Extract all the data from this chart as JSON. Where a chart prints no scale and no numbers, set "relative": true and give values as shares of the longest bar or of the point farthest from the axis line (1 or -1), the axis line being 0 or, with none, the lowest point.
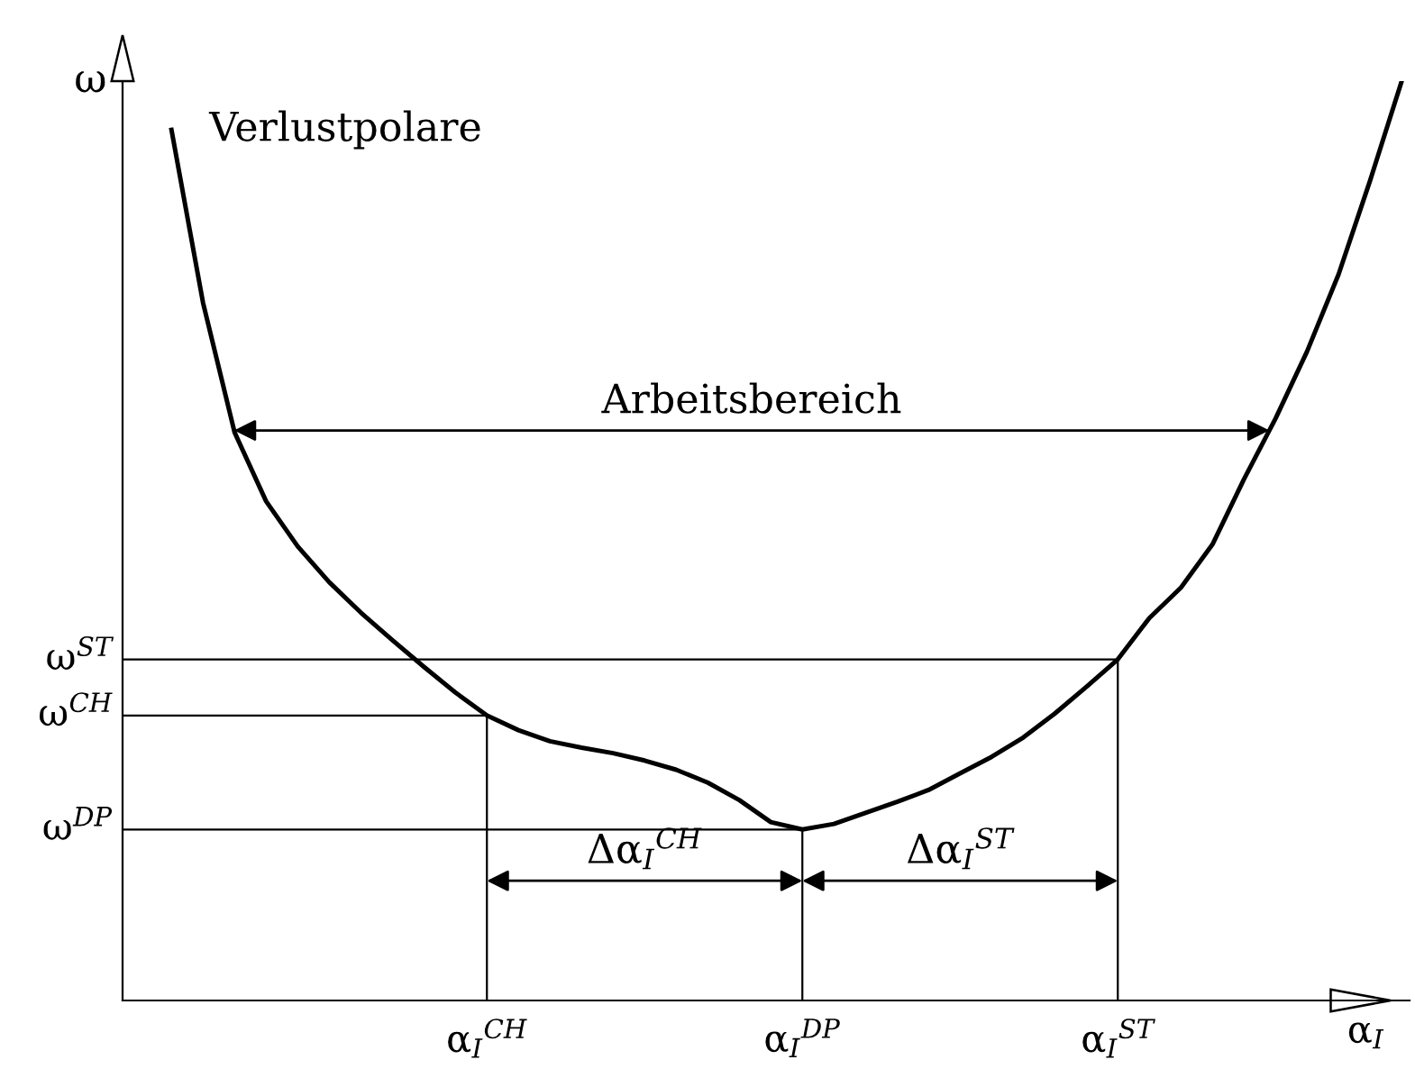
{
  "chart_data": {
    "type": "line",
    "relative": true,
    "xlabel": "α$_{I}$",
    "ylabel": "ω",
    "categories": [
      null,
      null,
      null,
      null,
      null,
      null,
      null,
      null,
      null,
      null,
      "α$_{I}$$^{CH}$",
      null,
      null,
      null,
      null,
      null,
      null,
      null,
      null,
      null,
      "α$_{I}$$^{DP}$",
      null,
      null,
      null,
      null,
      null,
      null,
      null,
      null,
      null,
      "α$_{I}$$^{ST}$",
      null,
      null,
      null,
      null,
      null,
      null,
      null,
      null,
      null
    ],
    "series": [
      {
        "color": "#000000",
        "values": [
          0.947,
          0.759,
          0.618,
          0.543,
          0.494,
          0.455,
          0.422,
          0.392,
          0.363,
          0.335,
          0.31,
          0.294,
          0.282,
          0.275,
          0.269,
          0.261,
          0.251,
          0.237,
          0.218,
          0.194,
          0.186,
          0.192,
          0.204,
          0.216,
          0.229,
          0.247,
          0.265,
          0.286,
          0.312,
          0.341,
          0.371,
          0.416,
          0.449,
          0.496,
          0.567,
          0.633,
          0.706,
          0.79,
          0.892,
          1.0
        ]
      }
    ],
    "ref_lines": [
      {
        "axis": "x",
        "value": "α$_{I}$$^{CH}$"
      },
      {
        "axis": "x",
        "value": "α$_{I}$$^{DP}$"
      },
      {
        "axis": "x",
        "value": "α$_{I}$$^{ST}$"
      },
      {
        "axis": "y",
        "value": 0.31,
        "label": "ω$^{CH}$"
      },
      {
        "axis": "y",
        "value": 0.186,
        "label": "ω$^{DP}$"
      },
      {
        "axis": "y",
        "value": 0.371,
        "label": "ω$^{ST}$"
      }
    ],
    "annotations": [
      "Verlustpolare",
      "Arbeitsbereich",
      "Δα$_{I}$$^{CH}$",
      "Δα$_{I}$$^{ST}$"
    ],
    "grid": false,
    "legend": false,
    "marker": "none",
    "line_style": "solid"
  }
}
